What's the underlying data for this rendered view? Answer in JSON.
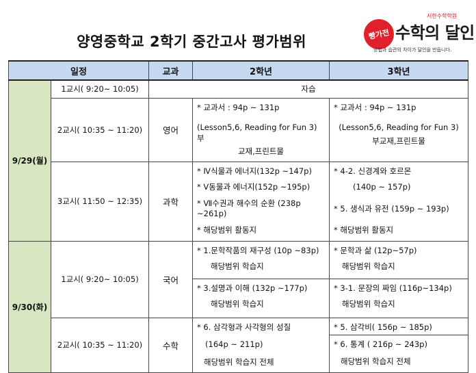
{
  "title": "양영중학교 2학기 중간고사 평가범위",
  "logo": {
    "small_top": "서한수학학원",
    "badge_text": "빵가전",
    "brand": "수학의 달인",
    "slogan": "방법과 습관의 차이가 달인을 만듭니다."
  },
  "headers": {
    "schedule": "일정",
    "subject": "교과",
    "grade2": "2학년",
    "grade3": "3학년"
  },
  "days": [
    {
      "date": "9/29(월)",
      "periods": [
        {
          "time": "1교시( 9:20~ 10:05)",
          "subject": "",
          "self_study": "자습"
        },
        {
          "time": "2교시( 10:35 ~ 11:20)",
          "subject": "영어",
          "grade2": [
            "* 교과서 : 94p ~ 131p",
            "(Lesson5,6, Reading for Fun 3)    부",
            "교재,프린트물"
          ],
          "grade3": [
            "* 교과서 : 94p ~ 131p",
            "(Lesson5,6, Reading for Fun 3)",
            "부교재,프린트물"
          ]
        },
        {
          "time": "3교시( 11:50 ~ 12:35)",
          "subject": "과학",
          "grade2": [
            "* Ⅳ식물과 에너지(132p ~147p)",
            "* Ⅴ동물과 에너지(152p ~195p)",
            "* Ⅶ수권과 해수의 순환 (238p",
            "~261p)",
            "* 해당범위 활동지"
          ],
          "grade3": [
            "* 4-2. 신경계와 호르몬",
            "(140p ~ 157p)",
            "* 5. 생식과 유전 (159p ~ 193p)",
            "* 해당범위 활동지"
          ]
        }
      ]
    },
    {
      "date": "9/30(화)",
      "periods": [
        {
          "time": "1교시( 9:20~ 10:05)",
          "subject": "국어",
          "grade2": [
            "* 1.문학작품의 재구성 (10p ~83p)",
            "해당범위 학습지",
            "* 3.설명과 이해 (132p ~177p)",
            "해당범위 학습지"
          ],
          "grade3": [
            "* 문학과 삶 (12p~57p)",
            "해당범위 학습지",
            "* 3-1. 문장의 짜임 (116p~134p)",
            "해당범위 학습지"
          ]
        },
        {
          "time": "2교시( 10:35 ~ 11:20)",
          "subject": "수학",
          "grade2": [
            "* 6. 삼각형과 사각형의 성질",
            "(164p ~ 211p)",
            "해당범위 학습지 전체"
          ],
          "grade3": [
            "* 5. 삼각비( 156p ~ 185p)",
            "* 6. 통계 ( 216p ~ 243p)",
            "해당범위 학습지 전체"
          ]
        }
      ]
    }
  ]
}
